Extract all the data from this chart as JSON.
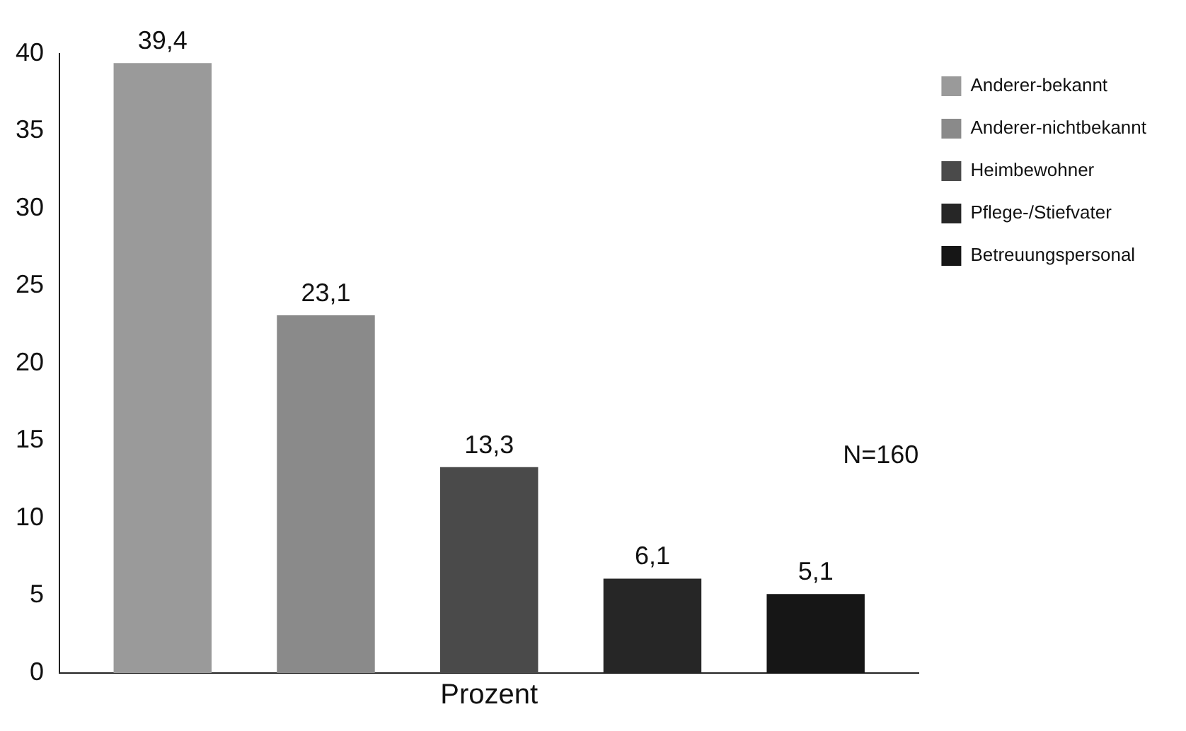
{
  "chart_data": {
    "type": "bar",
    "xlabel": "Prozent",
    "categories": [
      null
    ],
    "series": [
      {
        "name": "Anderer-bekannt",
        "color": "#9a9a9a",
        "values": [
          39.4
        ],
        "value_labels": [
          "39,4"
        ]
      },
      {
        "name": "Anderer-nichtbekannt",
        "color": "#8a8a8a",
        "values": [
          23.1
        ],
        "value_labels": [
          "23,1"
        ]
      },
      {
        "name": "Heimbewohner",
        "color": "#4a4a4a",
        "values": [
          13.3
        ],
        "value_labels": [
          "13,3"
        ]
      },
      {
        "name": "Pflege-/Stiefvater",
        "color": "#262626",
        "values": [
          6.1
        ],
        "value_labels": [
          "6,1"
        ]
      },
      {
        "name": "Betreuungspersonal",
        "color": "#161616",
        "values": [
          5.1
        ],
        "value_labels": [
          "5,1"
        ]
      }
    ],
    "ylim": [
      0,
      40
    ],
    "yticks": [
      0,
      5,
      10,
      15,
      20,
      25,
      30,
      35,
      40
    ],
    "grid": false,
    "legend": "top right",
    "annotations": [
      "N=160"
    ]
  }
}
